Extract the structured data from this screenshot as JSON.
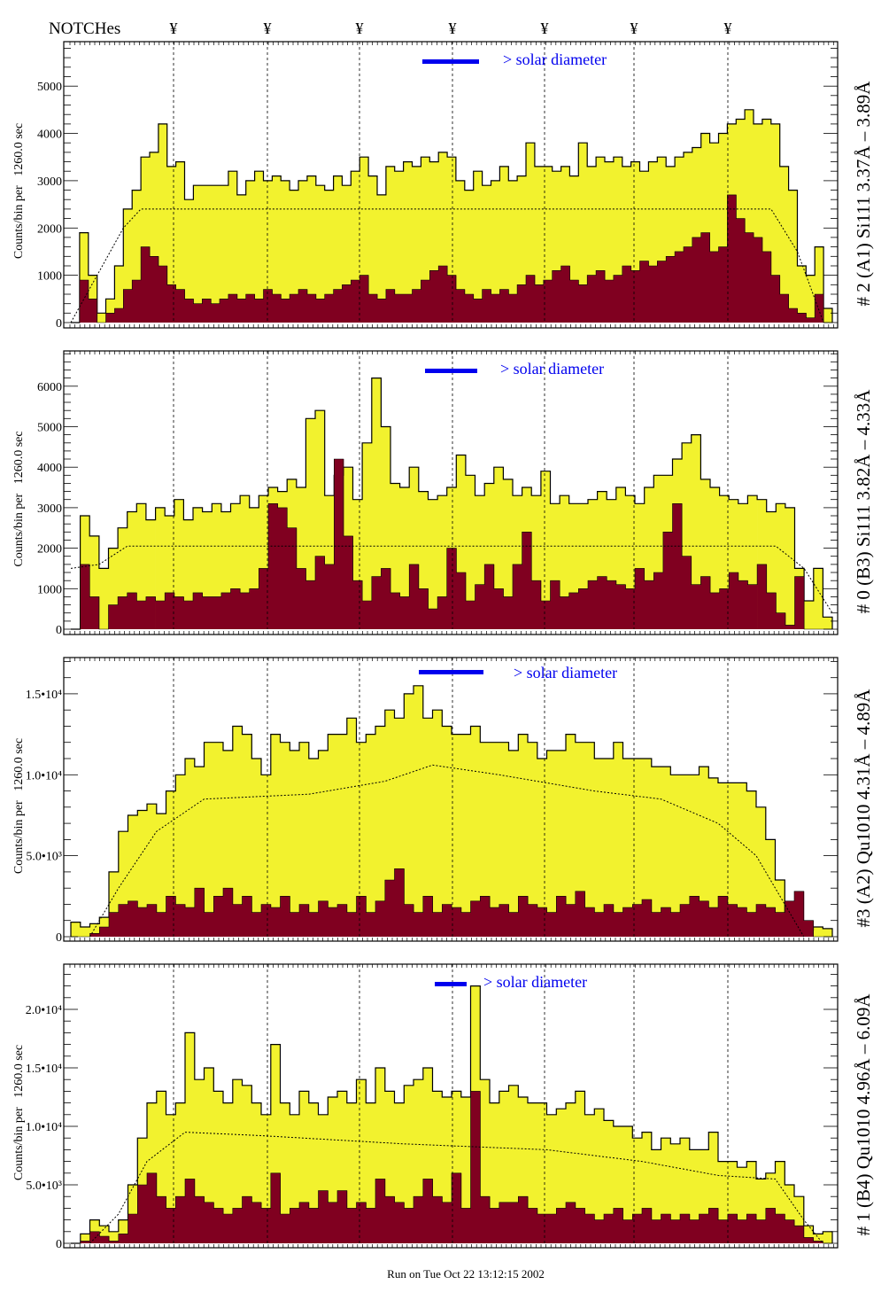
{
  "header": {
    "notches_label": "NOTCHes",
    "notch_symbol": "¥"
  },
  "footer": {
    "run_text": "Run on Tue Oct 22 13:12:15 2002"
  },
  "colors": {
    "total": "#f2f22e",
    "partial": "#800020",
    "legend": "#0000ee"
  },
  "chart_data": [
    {
      "type": "bar",
      "title": "# 2 (A1) Si111  3.37Å – 3.89Å",
      "ylabel": "Counts/bin per   1260.0 sec",
      "ylim": [
        0,
        5940
      ],
      "yticks": [
        0,
        1000,
        2000,
        3000,
        4000,
        5000
      ],
      "ytick_labels": [
        "0",
        "1000",
        "2000",
        "3000",
        "4000",
        "5000"
      ],
      "legend": "> solar diameter",
      "series": [
        {
          "name": "total",
          "values": [
            0,
            1900,
            1000,
            200,
            500,
            1200,
            2400,
            2800,
            3500,
            3600,
            4200,
            3300,
            3400,
            2600,
            2900,
            2900,
            2900,
            2900,
            3200,
            2700,
            3000,
            3200,
            3000,
            3100,
            3000,
            2800,
            3000,
            3100,
            2900,
            2800,
            3100,
            2900,
            3200,
            3500,
            3100,
            2700,
            3300,
            3200,
            3400,
            3300,
            3500,
            3400,
            3600,
            3500,
            3000,
            2800,
            3200,
            2900,
            3000,
            3300,
            3000,
            3100,
            3800,
            3300,
            3300,
            3200,
            3300,
            3100,
            3800,
            3300,
            3500,
            3400,
            3500,
            3300,
            3400,
            3200,
            3400,
            3500,
            3300,
            3500,
            3600,
            3700,
            4000,
            3800,
            4000,
            4200,
            4300,
            4500,
            4200,
            4300,
            4200,
            3300,
            2800,
            1200,
            1000,
            1600,
            300
          ]
        },
        {
          "name": "partial",
          "values": [
            0,
            900,
            500,
            0,
            200,
            300,
            700,
            900,
            1600,
            1400,
            1200,
            800,
            700,
            500,
            400,
            500,
            400,
            500,
            600,
            500,
            600,
            500,
            700,
            600,
            500,
            600,
            700,
            600,
            500,
            600,
            700,
            800,
            900,
            1000,
            600,
            500,
            700,
            600,
            600,
            700,
            900,
            1100,
            1200,
            1000,
            700,
            600,
            500,
            700,
            600,
            700,
            600,
            800,
            1000,
            800,
            900,
            1100,
            1200,
            900,
            800,
            1000,
            1100,
            900,
            1000,
            1200,
            1100,
            1300,
            1200,
            1300,
            1400,
            1500,
            1600,
            1800,
            1900,
            1500,
            1600,
            2700,
            2200,
            1900,
            1800,
            1500,
            1000,
            600,
            300,
            200,
            100,
            600,
            0
          ]
        }
      ],
      "model": [
        [
          0,
          0
        ],
        [
          3,
          1000
        ],
        [
          6,
          2000
        ],
        [
          8,
          2400
        ],
        [
          80,
          2400
        ],
        [
          83,
          1500
        ],
        [
          86,
          0
        ]
      ]
    },
    {
      "type": "bar",
      "title": "# 0 (B3) Si111  3.82Å – 4.33Å",
      "ylabel": "Counts/bin per   1260.0 sec",
      "ylim": [
        0,
        6870
      ],
      "yticks": [
        0,
        1000,
        2000,
        3000,
        4000,
        5000,
        6000
      ],
      "ytick_labels": [
        "0",
        "1000",
        "2000",
        "3000",
        "4000",
        "5000",
        "6000"
      ],
      "legend": "> solar diameter",
      "series": [
        {
          "name": "total",
          "values": [
            0,
            2800,
            2300,
            1500,
            2000,
            2500,
            2900,
            3100,
            2700,
            3000,
            2800,
            3200,
            2700,
            3000,
            2900,
            3100,
            2900,
            3100,
            3300,
            3000,
            3300,
            3500,
            3400,
            3700,
            3500,
            5200,
            5400,
            3300,
            3800,
            4000,
            3200,
            4600,
            6200,
            5000,
            3600,
            3500,
            4000,
            3400,
            3200,
            3300,
            3500,
            4300,
            3800,
            3300,
            3600,
            4000,
            3700,
            3300,
            3500,
            3300,
            3900,
            3100,
            3300,
            3100,
            3100,
            3200,
            3400,
            3200,
            3500,
            3300,
            3100,
            3500,
            3800,
            3800,
            4200,
            4600,
            4800,
            3700,
            3500,
            3300,
            3200,
            3100,
            3300,
            3200,
            2900,
            3100,
            3000,
            1500,
            700,
            1500,
            300
          ]
        },
        {
          "name": "partial",
          "values": [
            0,
            1600,
            800,
            0,
            600,
            800,
            900,
            700,
            800,
            700,
            900,
            800,
            700,
            900,
            800,
            800,
            900,
            1000,
            900,
            1000,
            1500,
            3100,
            3000,
            2500,
            1500,
            1200,
            1800,
            1600,
            4200,
            2300,
            1200,
            700,
            1300,
            1500,
            900,
            800,
            1600,
            1000,
            500,
            800,
            2000,
            1400,
            700,
            1100,
            1600,
            1000,
            800,
            1600,
            2400,
            1200,
            700,
            1200,
            800,
            900,
            1000,
            1200,
            1300,
            1200,
            1100,
            1000,
            1500,
            1200,
            1400,
            2400,
            3100,
            1800,
            1100,
            1300,
            900,
            1000,
            1400,
            1200,
            1100,
            1600,
            900,
            400,
            100,
            1300,
            0
          ]
        }
      ],
      "model": [
        [
          0,
          1500
        ],
        [
          3,
          1600
        ],
        [
          6,
          2050
        ],
        [
          75,
          2050
        ],
        [
          78,
          1500
        ],
        [
          81,
          400
        ]
      ]
    },
    {
      "type": "bar",
      "title": "#3 (A2) Qu1010  4.31Å – 4.89Å",
      "ylabel": "Counts/bin per   1260.0 sec",
      "ylim": [
        0,
        17240
      ],
      "yticks": [
        0,
        5000,
        10000,
        15000
      ],
      "ytick_labels": [
        "0",
        "5.0•10³",
        "1.0•10⁴",
        "1.5•10⁴"
      ],
      "legend": "> solar diameter",
      "series": [
        {
          "name": "total",
          "values": [
            900,
            600,
            800,
            1200,
            4000,
            6500,
            7500,
            7800,
            8200,
            7600,
            9000,
            10000,
            11000,
            10500,
            12000,
            12000,
            11500,
            13000,
            12500,
            11000,
            10000,
            12500,
            12000,
            11500,
            12000,
            11000,
            11500,
            12500,
            12500,
            13500,
            12000,
            12500,
            13000,
            14000,
            13500,
            15000,
            15500,
            13500,
            14000,
            13000,
            12500,
            12500,
            13000,
            12000,
            12000,
            12000,
            11500,
            12500,
            12000,
            11000,
            11500,
            11500,
            12500,
            12000,
            12000,
            11000,
            11000,
            12000,
            11000,
            11000,
            11000,
            10500,
            10500,
            10000,
            10000,
            10000,
            10500,
            9800,
            9500,
            9500,
            9500,
            9000,
            8000,
            6000,
            3500,
            1500,
            800,
            400,
            600,
            500
          ]
        },
        {
          "name": "partial",
          "values": [
            0,
            0,
            200,
            600,
            1500,
            2000,
            2200,
            1800,
            2000,
            1500,
            2500,
            2000,
            1800,
            3000,
            1500,
            2500,
            3000,
            2000,
            2500,
            1500,
            2000,
            1800,
            2500,
            1500,
            2000,
            1500,
            2200,
            1800,
            2000,
            1500,
            2500,
            1500,
            2200,
            3500,
            4200,
            2000,
            1500,
            2500,
            1500,
            2000,
            1800,
            1500,
            2200,
            2500,
            1800,
            2000,
            1500,
            2500,
            2000,
            1800,
            1500,
            2500,
            2000,
            2800,
            1800,
            1500,
            2000,
            1500,
            1800,
            2000,
            2300,
            1500,
            1800,
            1500,
            2000,
            2500,
            2200,
            1800,
            2500,
            2000,
            1800,
            1500,
            2000,
            1800,
            1500,
            2200,
            2800,
            1000,
            0,
            0
          ]
        }
      ],
      "model": [
        [
          2,
          0
        ],
        [
          5,
          3000
        ],
        [
          9,
          6500
        ],
        [
          14,
          8500
        ],
        [
          25,
          8800
        ],
        [
          33,
          9600
        ],
        [
          38,
          10600
        ],
        [
          45,
          10000
        ],
        [
          55,
          9000
        ],
        [
          62,
          8500
        ],
        [
          68,
          7000
        ],
        [
          72,
          5000
        ],
        [
          75,
          2000
        ],
        [
          77,
          0
        ]
      ]
    },
    {
      "type": "bar",
      "title": "# 1 (B4) Qu1010  4.96Å – 6.09Å",
      "ylabel": "Counts/bin per   1260.0 sec",
      "ylim": [
        0,
        23860
      ],
      "yticks": [
        0,
        5000,
        10000,
        15000,
        20000
      ],
      "ytick_labels": [
        "0",
        "5.0•10³",
        "1.0•10⁴",
        "1.5•10⁴",
        "2.0•10⁴"
      ],
      "legend": "> solar diameter",
      "series": [
        {
          "name": "total",
          "values": [
            0,
            800,
            2000,
            1500,
            1000,
            2000,
            5000,
            9000,
            12000,
            13000,
            11000,
            12000,
            18000,
            14000,
            15000,
            13000,
            12000,
            14000,
            13500,
            12000,
            11000,
            17000,
            12000,
            11000,
            13000,
            12000,
            11000,
            12500,
            13000,
            12000,
            14000,
            12000,
            15000,
            13000,
            12000,
            13500,
            14000,
            15000,
            13000,
            12500,
            13000,
            12500,
            22000,
            14000,
            12000,
            13000,
            13500,
            12500,
            12000,
            12000,
            11000,
            11500,
            12000,
            13000,
            11000,
            11500,
            10500,
            10000,
            10000,
            9000,
            9500,
            8000,
            9000,
            8500,
            9000,
            8000,
            8000,
            9500,
            7000,
            7000,
            6500,
            7000,
            5500,
            6000,
            7000,
            5000,
            4000,
            1500,
            800,
            1000
          ]
        },
        {
          "name": "partial",
          "values": [
            0,
            200,
            1000,
            600,
            200,
            800,
            2500,
            5000,
            6000,
            4000,
            3000,
            4000,
            5500,
            4000,
            3500,
            3000,
            2500,
            3000,
            4000,
            3500,
            3000,
            6000,
            2500,
            3000,
            3500,
            3000,
            4500,
            3500,
            4500,
            3000,
            3500,
            3000,
            5500,
            4000,
            3500,
            3000,
            4000,
            5500,
            4000,
            3500,
            6000,
            3000,
            13000,
            4000,
            3000,
            3500,
            3500,
            4000,
            3000,
            2500,
            2500,
            3000,
            3500,
            3000,
            2500,
            2000,
            2500,
            3000,
            2000,
            2500,
            3000,
            2000,
            2500,
            2000,
            2500,
            2000,
            2500,
            3000,
            2000,
            2500,
            2000,
            2500,
            2000,
            3000,
            2500,
            2000,
            1500,
            500,
            200,
            0
          ]
        }
      ],
      "model": [
        [
          2,
          0
        ],
        [
          5,
          2500
        ],
        [
          8,
          7000
        ],
        [
          12,
          9500
        ],
        [
          20,
          9200
        ],
        [
          35,
          8500
        ],
        [
          50,
          8000
        ],
        [
          60,
          7000
        ],
        [
          68,
          5800
        ],
        [
          74,
          5500
        ],
        [
          77,
          2000
        ],
        [
          79,
          0
        ]
      ]
    }
  ]
}
